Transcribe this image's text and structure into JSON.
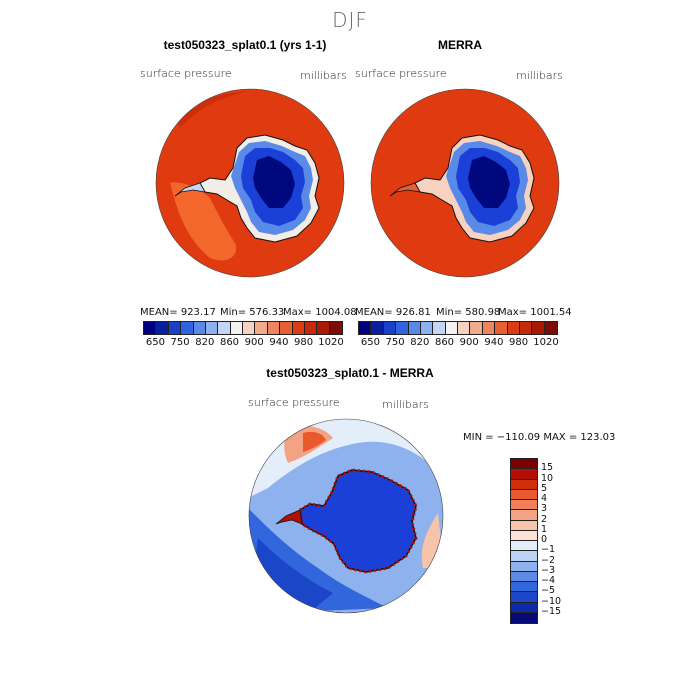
{
  "page": {
    "title": "DJF"
  },
  "panels": [
    {
      "title": "test050323_splat0.1 (yrs 1-1)",
      "left_label": "surface pressure",
      "right_label": "millibars",
      "stats": {
        "mean": "MEAN= 923.17",
        "min": "Min= 576.33",
        "max": "Max= 1004.08"
      }
    },
    {
      "title": "MERRA",
      "left_label": "surface pressure",
      "right_label": "millibars",
      "stats": {
        "mean": "MEAN= 926.81",
        "min": "Min= 580.98",
        "max": "Max= 1001.54"
      }
    }
  ],
  "colorbar_top": {
    "colors": [
      "#00007f",
      "#0a1f9e",
      "#1a3fc8",
      "#2f63e0",
      "#5a8ae8",
      "#8fb0ee",
      "#c4d6f6",
      "#f4f2f0",
      "#f7d2c0",
      "#f3ab8e",
      "#ec8660",
      "#e65f35",
      "#dc3b14",
      "#c72a0b",
      "#a81a06",
      "#7d0d02"
    ],
    "ticks": [
      "650",
      "750",
      "820",
      "860",
      "900",
      "940",
      "980",
      "1020"
    ]
  },
  "diff_panel": {
    "title": "test050323_splat0.1 - MERRA",
    "left_label": "surface pressure",
    "right_label": "millibars",
    "minmax": "MIN = −110.09 MAX = 123.03"
  },
  "colorbar_diff": {
    "colors": [
      "#7d0000",
      "#b40f05",
      "#d22d0a",
      "#e85a2e",
      "#f08058",
      "#f4a284",
      "#f7c3ab",
      "#fae2d4",
      "#e4eefb",
      "#bcd2f5",
      "#8eb2ee",
      "#5e8ae4",
      "#3266dc",
      "#1c46c8",
      "#0d2aa8",
      "#040a78"
    ],
    "ticks": [
      "15",
      "10",
      "5",
      "4",
      "3",
      "2",
      "1",
      "0",
      "−1",
      "−2",
      "−3",
      "−4",
      "−5",
      "−10",
      "−15"
    ]
  },
  "colors": {
    "ocean_high": "#e03a10",
    "land_low": "#1a40d8",
    "land_core": "#00087e",
    "coast": "#111111"
  },
  "map_rendering": "South Polar Stereographic projection of Antarctica"
}
